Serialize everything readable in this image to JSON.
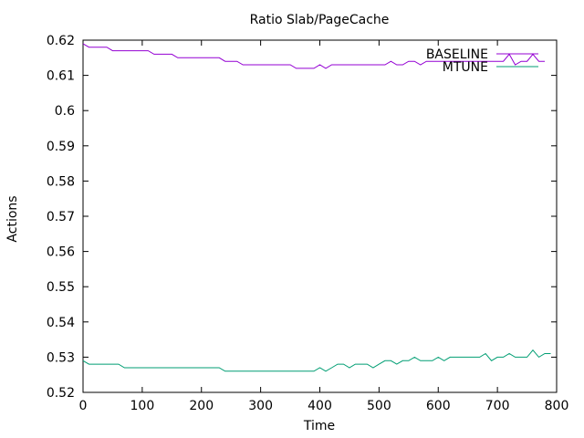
{
  "chart_data": {
    "type": "line",
    "title": "Ratio Slab/PageCache",
    "xlabel": "Time",
    "ylabel": "Actions",
    "xlim": [
      0,
      800
    ],
    "ylim": [
      0.52,
      0.62
    ],
    "xticks": [
      0,
      100,
      200,
      300,
      400,
      500,
      600,
      700,
      800
    ],
    "yticks": [
      0.52,
      0.53,
      0.54,
      0.55,
      0.56,
      0.57,
      0.58,
      0.59,
      0.6,
      0.61,
      0.62
    ],
    "ytick_labels": [
      "0.52",
      "0.53",
      "0.54",
      "0.55",
      "0.56",
      "0.57",
      "0.58",
      "0.59",
      "0.6",
      "0.61",
      "0.62"
    ],
    "grid": false,
    "legend_position": "top-right",
    "series": [
      {
        "name": "BASELINE",
        "color": "#9400d3",
        "x": [
          0,
          10,
          40,
          50,
          110,
          120,
          150,
          160,
          230,
          240,
          260,
          270,
          350,
          360,
          390,
          400,
          410,
          420,
          510,
          520,
          530,
          540,
          550,
          560,
          570,
          580,
          700,
          710,
          720,
          730,
          740,
          750,
          760,
          770,
          780
        ],
        "y": [
          0.619,
          0.618,
          0.618,
          0.617,
          0.617,
          0.616,
          0.616,
          0.615,
          0.615,
          0.614,
          0.614,
          0.613,
          0.613,
          0.612,
          0.612,
          0.613,
          0.612,
          0.613,
          0.613,
          0.614,
          0.613,
          0.613,
          0.614,
          0.614,
          0.613,
          0.614,
          0.614,
          0.614,
          0.616,
          0.613,
          0.614,
          0.614,
          0.616,
          0.614,
          0.614
        ]
      },
      {
        "name": "MTUNE",
        "color": "#009e73",
        "x": [
          0,
          10,
          60,
          70,
          230,
          240,
          390,
          400,
          410,
          420,
          430,
          440,
          450,
          460,
          480,
          490,
          500,
          510,
          520,
          530,
          540,
          550,
          560,
          570,
          590,
          600,
          610,
          620,
          670,
          680,
          690,
          700,
          710,
          720,
          730,
          750,
          760,
          770,
          780,
          790
        ],
        "y": [
          0.529,
          0.528,
          0.528,
          0.527,
          0.527,
          0.526,
          0.526,
          0.527,
          0.526,
          0.527,
          0.528,
          0.528,
          0.527,
          0.528,
          0.528,
          0.527,
          0.528,
          0.529,
          0.529,
          0.528,
          0.529,
          0.529,
          0.53,
          0.529,
          0.529,
          0.53,
          0.529,
          0.53,
          0.53,
          0.531,
          0.529,
          0.53,
          0.53,
          0.531,
          0.53,
          0.53,
          0.532,
          0.53,
          0.531,
          0.531
        ]
      }
    ]
  }
}
